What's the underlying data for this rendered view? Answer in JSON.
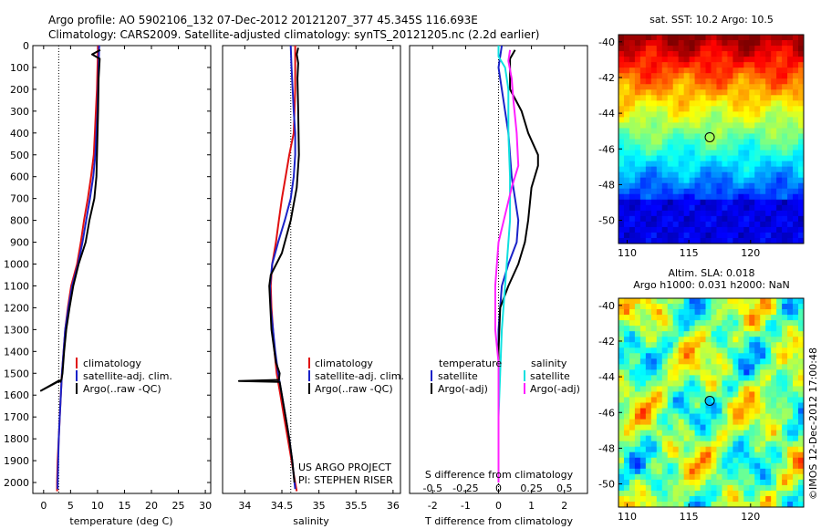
{
  "header": {
    "line1": "Argo profile: AO 5902106_132 07-Dec-2012 20121207_377 45.345S 116.693E",
    "line2": "Climatology: CARS2009. Satellite-adjusted climatology: synTS_20121205.nc (2.2d earlier)"
  },
  "credits": {
    "project": "US ARGO PROJECT",
    "pi": "PI: STEPHEN RISER",
    "stamp": "©IMOS 12-Dec-2012 17:00:48"
  },
  "colors": {
    "climatology": "#e01010",
    "satellite": "#1a22c8",
    "argo": "#000000",
    "satellite_s": "#10e0e0",
    "argo_s": "#ff20ff"
  },
  "chart_data": [
    {
      "type": "line",
      "id": "temperature",
      "xlabel": "temperature (deg C)",
      "ylim": [
        2050,
        0
      ],
      "xlim": [
        -2,
        31
      ],
      "xticks": [
        0,
        5,
        10,
        15,
        20,
        25,
        30
      ],
      "yticks": [
        0,
        100,
        200,
        300,
        400,
        500,
        600,
        700,
        800,
        900,
        1000,
        1100,
        1200,
        1300,
        1400,
        1500,
        1600,
        1700,
        1800,
        1900,
        2000
      ],
      "reference_x": 2.8,
      "legend": [
        "climatology",
        "satellite-adj. clim.",
        "Argo(..raw -QC)"
      ],
      "series": [
        {
          "name": "climatology",
          "color": "#e01010",
          "points": [
            [
              10.1,
              0
            ],
            [
              10.0,
              100
            ],
            [
              9.9,
              200
            ],
            [
              9.7,
              300
            ],
            [
              9.5,
              400
            ],
            [
              9.3,
              500
            ],
            [
              8.8,
              600
            ],
            [
              8.2,
              700
            ],
            [
              7.5,
              800
            ],
            [
              6.9,
              900
            ],
            [
              6.2,
              1000
            ],
            [
              5.1,
              1100
            ],
            [
              4.5,
              1200
            ],
            [
              4.0,
              1300
            ],
            [
              3.7,
              1400
            ],
            [
              3.4,
              1500
            ],
            [
              3.2,
              1600
            ],
            [
              3.0,
              1700
            ],
            [
              2.8,
              1800
            ],
            [
              2.6,
              1900
            ],
            [
              2.5,
              2000
            ],
            [
              2.5,
              2040
            ]
          ]
        },
        {
          "name": "satellite-adj. clim.",
          "color": "#1a22c8",
          "points": [
            [
              10.3,
              0
            ],
            [
              10.2,
              100
            ],
            [
              10.1,
              200
            ],
            [
              10.0,
              300
            ],
            [
              9.8,
              400
            ],
            [
              9.6,
              500
            ],
            [
              9.2,
              600
            ],
            [
              8.6,
              700
            ],
            [
              7.9,
              800
            ],
            [
              7.2,
              900
            ],
            [
              6.4,
              1000
            ],
            [
              5.3,
              1100
            ],
            [
              4.6,
              1200
            ],
            [
              4.0,
              1300
            ],
            [
              3.7,
              1400
            ],
            [
              3.4,
              1500
            ],
            [
              3.2,
              1600
            ],
            [
              3.0,
              1700
            ],
            [
              2.8,
              1800
            ],
            [
              2.7,
              1900
            ],
            [
              2.6,
              2000
            ],
            [
              2.6,
              2030
            ]
          ]
        },
        {
          "name": "Argo(..raw -QC)",
          "color": "#000000",
          "points": [
            [
              10.5,
              20
            ],
            [
              9.0,
              40
            ],
            [
              10.4,
              60
            ],
            [
              10.2,
              150
            ],
            [
              10.1,
              300
            ],
            [
              10.0,
              400
            ],
            [
              9.9,
              500
            ],
            [
              9.8,
              600
            ],
            [
              9.4,
              700
            ],
            [
              8.5,
              800
            ],
            [
              7.8,
              900
            ],
            [
              6.5,
              1000
            ],
            [
              5.5,
              1100
            ],
            [
              4.8,
              1200
            ],
            [
              4.2,
              1300
            ],
            [
              3.8,
              1400
            ],
            [
              3.5,
              1500
            ],
            [
              3.3,
              1530
            ],
            [
              -0.5,
              1580
            ],
            [
              2.7,
              1535
            ],
            [
              3.3,
              1540
            ]
          ]
        }
      ]
    },
    {
      "type": "line",
      "id": "salinity",
      "xlabel": "salinity",
      "ylim": [
        2050,
        0
      ],
      "xlim": [
        33.7,
        36.1
      ],
      "xticks": [
        34,
        34.5,
        35,
        35.5,
        36
      ],
      "reference_x": 34.62,
      "legend": [
        "climatology",
        "satellite-adj. clim.",
        "Argo(..raw -QC)"
      ],
      "series": [
        {
          "name": "climatology",
          "color": "#e01010",
          "points": [
            [
              34.68,
              0
            ],
            [
              34.68,
              200
            ],
            [
              34.66,
              400
            ],
            [
              34.6,
              500
            ],
            [
              34.55,
              600
            ],
            [
              34.5,
              700
            ],
            [
              34.46,
              800
            ],
            [
              34.42,
              900
            ],
            [
              34.37,
              1000
            ],
            [
              34.35,
              1100
            ],
            [
              34.36,
              1200
            ],
            [
              34.38,
              1300
            ],
            [
              34.4,
              1400
            ],
            [
              34.43,
              1500
            ],
            [
              34.48,
              1600
            ],
            [
              34.53,
              1700
            ],
            [
              34.58,
              1800
            ],
            [
              34.63,
              1900
            ],
            [
              34.68,
              2000
            ],
            [
              34.7,
              2040
            ]
          ]
        },
        {
          "name": "satellite-adj. clim.",
          "color": "#1a22c8",
          "points": [
            [
              34.62,
              0
            ],
            [
              34.63,
              100
            ],
            [
              34.66,
              300
            ],
            [
              34.68,
              400
            ],
            [
              34.68,
              500
            ],
            [
              34.66,
              600
            ],
            [
              34.62,
              700
            ],
            [
              34.54,
              800
            ],
            [
              34.45,
              900
            ],
            [
              34.37,
              1000
            ],
            [
              34.34,
              1100
            ],
            [
              34.35,
              1200
            ],
            [
              34.38,
              1300
            ],
            [
              34.41,
              1400
            ],
            [
              34.45,
              1500
            ],
            [
              34.5,
              1600
            ],
            [
              34.55,
              1700
            ],
            [
              34.6,
              1800
            ],
            [
              34.64,
              1900
            ],
            [
              34.67,
              2000
            ],
            [
              34.68,
              2030
            ]
          ]
        },
        {
          "name": "Argo(..raw -QC)",
          "color": "#000000",
          "points": [
            [
              34.72,
              10
            ],
            [
              34.7,
              40
            ],
            [
              34.72,
              80
            ],
            [
              34.71,
              150
            ],
            [
              34.72,
              300
            ],
            [
              34.73,
              500
            ],
            [
              34.7,
              650
            ],
            [
              34.62,
              800
            ],
            [
              34.5,
              950
            ],
            [
              34.35,
              1050
            ],
            [
              34.33,
              1100
            ],
            [
              34.36,
              1300
            ],
            [
              34.42,
              1450
            ],
            [
              34.47,
              1500
            ],
            [
              34.46,
              1530
            ],
            [
              33.92,
              1535
            ],
            [
              34.47,
              1540
            ],
            [
              34.5,
              1600
            ],
            [
              34.55,
              1700
            ],
            [
              34.6,
              1800
            ],
            [
              34.64,
              1900
            ],
            [
              34.67,
              2000
            ]
          ]
        }
      ]
    },
    {
      "type": "line",
      "id": "difference",
      "xlabel": "T difference from climatology",
      "xlabel2": "S difference from climatology",
      "ylim": [
        2050,
        0
      ],
      "xlim": [
        -2.7,
        2.7
      ],
      "xticks": [
        -2,
        -1,
        0,
        1,
        2
      ],
      "xticks2": [
        "-0.5",
        "-0.25",
        "0",
        "0.25",
        "0.5"
      ],
      "legend_titles": [
        "temperature",
        "salinity"
      ],
      "legend": [
        "satellite",
        "Argo(-adj)",
        "satellite",
        "Argo(-adj)"
      ],
      "series": [
        {
          "name": "temperature satellite",
          "color": "#1a22c8",
          "points": [
            [
              0.1,
              0
            ],
            [
              0.0,
              100
            ],
            [
              0.1,
              200
            ],
            [
              0.2,
              300
            ],
            [
              0.3,
              400
            ],
            [
              0.35,
              500
            ],
            [
              0.4,
              600
            ],
            [
              0.5,
              700
            ],
            [
              0.6,
              800
            ],
            [
              0.55,
              900
            ],
            [
              0.3,
              1000
            ],
            [
              0.1,
              1100
            ],
            [
              0.05,
              1200
            ],
            [
              0.0,
              1300
            ],
            [
              0.0,
              1500
            ],
            [
              0.0,
              1700
            ],
            [
              0.0,
              1900
            ],
            [
              0.0,
              2000
            ]
          ]
        },
        {
          "name": "temperature Argo(-adj)",
          "color": "#000000",
          "points": [
            [
              0.5,
              20
            ],
            [
              0.35,
              60
            ],
            [
              0.35,
              200
            ],
            [
              0.7,
              300
            ],
            [
              0.9,
              400
            ],
            [
              1.2,
              500
            ],
            [
              1.2,
              550
            ],
            [
              1.0,
              650
            ],
            [
              0.9,
              800
            ],
            [
              0.8,
              900
            ],
            [
              0.6,
              1000
            ],
            [
              0.3,
              1100
            ],
            [
              0.05,
              1200
            ],
            [
              0.0,
              1400
            ],
            [
              0.0,
              2000
            ]
          ]
        },
        {
          "name": "salinity satellite",
          "color": "#10e0e0",
          "points": [
            [
              0.0,
              0
            ],
            [
              0.0,
              50
            ],
            [
              0.2,
              100
            ],
            [
              0.3,
              200
            ],
            [
              0.3,
              400
            ],
            [
              0.35,
              600
            ],
            [
              0.35,
              800
            ],
            [
              0.3,
              900
            ],
            [
              0.2,
              1100
            ],
            [
              0.1,
              1300
            ],
            [
              0.05,
              1500
            ],
            [
              0.0,
              1700
            ],
            [
              0.0,
              2000
            ]
          ]
        },
        {
          "name": "salinity Argo(-adj)",
          "color": "#ff20ff",
          "points": [
            [
              0.35,
              20
            ],
            [
              0.3,
              70
            ],
            [
              0.4,
              150
            ],
            [
              0.45,
              250
            ],
            [
              0.55,
              400
            ],
            [
              0.6,
              550
            ],
            [
              0.4,
              650
            ],
            [
              0.0,
              900
            ],
            [
              -0.1,
              1100
            ],
            [
              -0.1,
              1300
            ],
            [
              0.0,
              1450
            ],
            [
              0.0,
              2000
            ]
          ]
        }
      ]
    },
    {
      "type": "heatmap",
      "id": "sst_map",
      "title": "sat. SST: 10.2  Argo: 10.5",
      "xlim": [
        109.3,
        124.3
      ],
      "ylim": [
        -51.3,
        -39.6
      ],
      "xticks": [
        110,
        115,
        120
      ],
      "yticks": [
        -40,
        -42,
        -44,
        -46,
        -48,
        -50
      ],
      "marker": [
        116.693,
        -45.345
      ]
    },
    {
      "type": "heatmap",
      "id": "sla_map",
      "title": "Altim. SLA: 0.018",
      "subtitle": "Argo h1000: 0.031 h2000: NaN",
      "xlim": [
        109.3,
        124.3
      ],
      "ylim": [
        -51.3,
        -39.6
      ],
      "xticks": [
        110,
        115,
        120
      ],
      "yticks": [
        -40,
        -42,
        -44,
        -46,
        -48,
        -50
      ],
      "marker": [
        116.693,
        -45.345
      ]
    }
  ]
}
